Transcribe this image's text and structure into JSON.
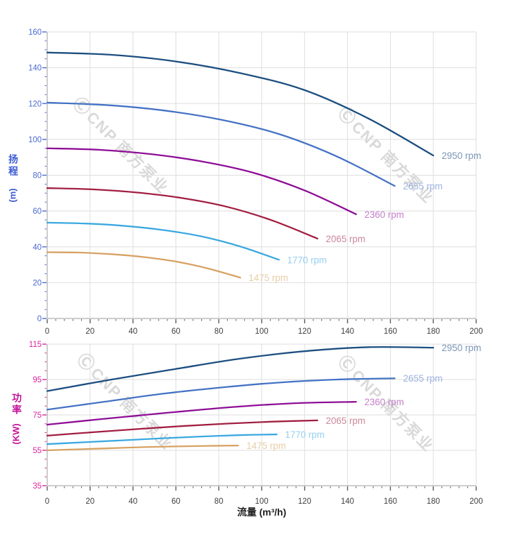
{
  "watermark": {
    "logo_char": "Ⓒ",
    "text": "CNP 南方泵业",
    "color": "#d9d9d9"
  },
  "chart_data": [
    {
      "id": "head-curve-chart",
      "type": "line",
      "title": "",
      "xlabel": "",
      "ylabel": "扬程 (m)",
      "ylabel_cjk": "扬程",
      "ylabel_unit": "(m)",
      "xlim": [
        0,
        200
      ],
      "ylim": [
        0,
        160
      ],
      "x_ticks": [
        0,
        20,
        40,
        60,
        80,
        100,
        120,
        140,
        160,
        180,
        200
      ],
      "y_ticks": [
        0,
        20,
        40,
        60,
        80,
        100,
        120,
        140,
        160
      ],
      "x_minor": 4,
      "y_minor": 5,
      "grid": true,
      "legend_position": "curve-end-labels",
      "y_tick_color": "#4a68d2",
      "x_tick_color": "#3d3d3d",
      "series": [
        {
          "name": "2950 rpm",
          "color": "#1c4e80",
          "label_color": "#7b97b8",
          "points": [
            [
              0,
              148.5
            ],
            [
              30,
              147.2
            ],
            [
              60,
              143.5
            ],
            [
              90,
              137
            ],
            [
              120,
              127.5
            ],
            [
              150,
              111.5
            ],
            [
              180,
              91
            ]
          ]
        },
        {
          "name": "2655 rpm",
          "color": "#4472c4",
          "label_color": "#9cb2e0",
          "points": [
            [
              0,
              120.5
            ],
            [
              27,
              119.2
            ],
            [
              54,
              116.2
            ],
            [
              81,
              111
            ],
            [
              108,
              103
            ],
            [
              135,
              90.5
            ],
            [
              162,
              74
            ]
          ]
        },
        {
          "name": "2360 rpm",
          "color": "#8e0d96",
          "label_color": "#c37fc8",
          "points": [
            [
              0,
              95
            ],
            [
              24,
              94.2
            ],
            [
              48,
              91.8
            ],
            [
              72,
              87.7
            ],
            [
              96,
              81.4
            ],
            [
              120,
              71.5
            ],
            [
              144,
              58.2
            ]
          ]
        },
        {
          "name": "2065 rpm",
          "color": "#a21e40",
          "label_color": "#c9889b",
          "points": [
            [
              0,
              72.8
            ],
            [
              21,
              72.1
            ],
            [
              42,
              70.3
            ],
            [
              63,
              67.2
            ],
            [
              84,
              62.3
            ],
            [
              105,
              54.7
            ],
            [
              126,
              44.6
            ]
          ]
        },
        {
          "name": "1770 rpm",
          "color": "#3aa8e0",
          "label_color": "#96cfef",
          "points": [
            [
              0,
              53.5
            ],
            [
              18,
              53
            ],
            [
              36,
              51.7
            ],
            [
              54,
              49.4
            ],
            [
              72,
              45.8
            ],
            [
              90,
              40.2
            ],
            [
              108,
              32.8
            ]
          ]
        },
        {
          "name": "1475 rpm",
          "color": "#d7a263",
          "label_color": "#e8cda7",
          "points": [
            [
              0,
              37
            ],
            [
              15,
              36.8
            ],
            [
              30,
              35.9
            ],
            [
              45,
              34.3
            ],
            [
              60,
              31.8
            ],
            [
              75,
              27.9
            ],
            [
              90,
              22.8
            ]
          ]
        }
      ]
    },
    {
      "id": "power-curve-chart",
      "type": "line",
      "title": "",
      "xlabel": "流量 (m³/h)",
      "ylabel": "功率 (KW)",
      "ylabel_cjk": "功率",
      "ylabel_unit": "(KW)",
      "xlim": [
        0,
        200
      ],
      "ylim": [
        35,
        115
      ],
      "x_ticks": [
        0,
        20,
        40,
        60,
        80,
        100,
        120,
        140,
        160,
        180,
        200
      ],
      "y_ticks": [
        35,
        55,
        75,
        95,
        115
      ],
      "x_minor": 4,
      "y_minor": 5,
      "grid": true,
      "legend_position": "curve-end-labels",
      "y_tick_color": "#d6269e",
      "x_tick_color": "#3d3d3d",
      "series": [
        {
          "name": "2950 rpm",
          "color": "#1c4e80",
          "label_color": "#7b97b8",
          "points": [
            [
              0,
              88.5
            ],
            [
              30,
              95
            ],
            [
              60,
              101
            ],
            [
              90,
              106.8
            ],
            [
              120,
              111
            ],
            [
              150,
              113.3
            ],
            [
              180,
              113
            ]
          ]
        },
        {
          "name": "2655 rpm",
          "color": "#4472c4",
          "label_color": "#9cb2e0",
          "points": [
            [
              0,
              78
            ],
            [
              27,
              82.5
            ],
            [
              54,
              87
            ],
            [
              81,
              90.5
            ],
            [
              108,
              93.3
            ],
            [
              135,
              95
            ],
            [
              162,
              95.7
            ]
          ]
        },
        {
          "name": "2360 rpm",
          "color": "#8e0d96",
          "label_color": "#c37fc8",
          "points": [
            [
              0,
              69.5
            ],
            [
              24,
              72.5
            ],
            [
              48,
              75.3
            ],
            [
              72,
              78
            ],
            [
              96,
              80.3
            ],
            [
              120,
              81.8
            ],
            [
              144,
              82.4
            ]
          ]
        },
        {
          "name": "2065 rpm",
          "color": "#a21e40",
          "label_color": "#c9889b",
          "points": [
            [
              0,
              63.3
            ],
            [
              21,
              65.2
            ],
            [
              42,
              67
            ],
            [
              63,
              68.7
            ],
            [
              84,
              70.1
            ],
            [
              105,
              71.2
            ],
            [
              126,
              71.9
            ]
          ]
        },
        {
          "name": "1770 rpm",
          "color": "#3aa8e0",
          "label_color": "#96cfef",
          "points": [
            [
              0,
              58.5
            ],
            [
              18,
              59.6
            ],
            [
              36,
              60.7
            ],
            [
              54,
              61.8
            ],
            [
              72,
              62.8
            ],
            [
              90,
              63.6
            ],
            [
              107,
              64
            ]
          ]
        },
        {
          "name": "1475 rpm",
          "color": "#d7a263",
          "label_color": "#e8cda7",
          "points": [
            [
              0,
              55
            ],
            [
              15,
              55.6
            ],
            [
              30,
              56.2
            ],
            [
              45,
              56.8
            ],
            [
              60,
              57.2
            ],
            [
              75,
              57.5
            ],
            [
              89,
              57.7
            ]
          ]
        }
      ]
    }
  ]
}
